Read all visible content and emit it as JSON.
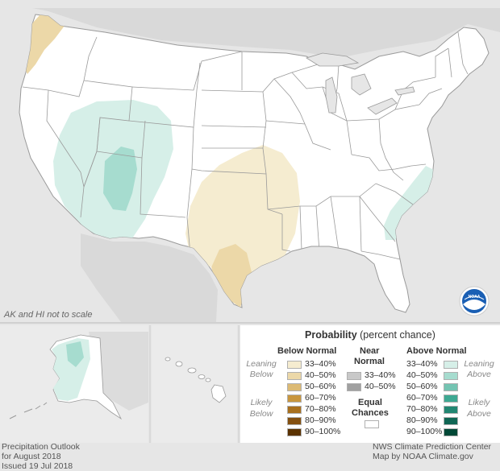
{
  "map": {
    "note": "AK and HI not to scale"
  },
  "legend": {
    "title_bold": "Probability",
    "title_rest": "(percent chance)",
    "below": {
      "heading": "Below Normal",
      "leaning": [
        "Leaning",
        "Below"
      ],
      "likely": [
        "Likely",
        "Below"
      ],
      "items": [
        {
          "label": "33–40%",
          "color": "#f5ecd0"
        },
        {
          "label": "40–50%",
          "color": "#ecd8a8"
        },
        {
          "label": "50–60%",
          "color": "#dcba74"
        },
        {
          "label": "60–70%",
          "color": "#c8963e"
        },
        {
          "label": "70–80%",
          "color": "#a8701e"
        },
        {
          "label": "80–90%",
          "color": "#845010"
        },
        {
          "label": "90–100%",
          "color": "#5a3200"
        }
      ]
    },
    "near": {
      "heading": [
        "Near",
        "Normal"
      ],
      "items": [
        {
          "label": "33–40%",
          "color": "#c8c8c8"
        },
        {
          "label": "40–50%",
          "color": "#a0a0a0"
        }
      ]
    },
    "equal": {
      "heading": [
        "Equal",
        "Chances"
      ],
      "color": "#ffffff"
    },
    "above": {
      "heading": "Above Normal",
      "leaning": [
        "Leaning",
        "Above"
      ],
      "likely": [
        "Likely",
        "Above"
      ],
      "items": [
        {
          "label": "33–40%",
          "color": "#d6efe8"
        },
        {
          "label": "40–50%",
          "color": "#a6dccf"
        },
        {
          "label": "50–60%",
          "color": "#74c4b2"
        },
        {
          "label": "60–70%",
          "color": "#3ea892"
        },
        {
          "label": "70–80%",
          "color": "#228672"
        },
        {
          "label": "80–90%",
          "color": "#106654"
        },
        {
          "label": "90–100%",
          "color": "#004836"
        }
      ]
    }
  },
  "footer": {
    "left": [
      "Precipitation Outlook",
      "for August 2018",
      "Issued 19 Jul 2018"
    ],
    "right": [
      "NWS Climate Prediction Center",
      "Map by NOAA Climate.gov"
    ]
  },
  "logo": {
    "text": "NOAA"
  },
  "colors": {
    "background": "#e6e6e6",
    "land": "#ffffff",
    "borders": "#9a9a9a"
  }
}
